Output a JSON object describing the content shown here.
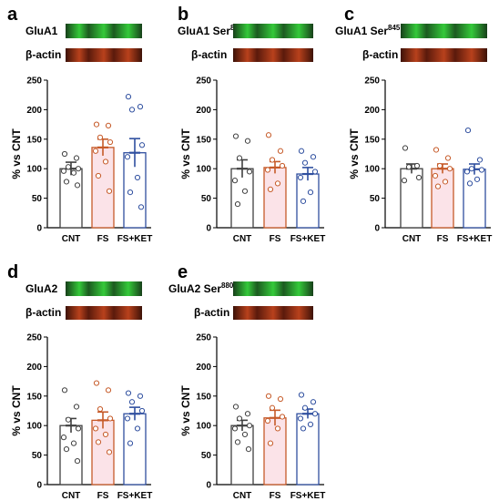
{
  "colors": {
    "CNT": "#404040",
    "FS": "#c65a28",
    "FS+KET": "#2f4f9f",
    "FS_fill": "#fbe3e8",
    "green_band": "#35c93a",
    "red_band": "#b8411c"
  },
  "chart_data": [
    {
      "type": "bar",
      "panel": "a",
      "blot_labels": {
        "target": "GluA1",
        "target_sup": "",
        "loading": "β-actin"
      },
      "categories": [
        "CNT",
        "FS",
        "FS+KET"
      ],
      "ylabel": "% vs CNT",
      "ylim": [
        0,
        250
      ],
      "yticks": [
        0,
        50,
        100,
        150,
        200,
        250
      ],
      "means": [
        100,
        136,
        127
      ],
      "sem": [
        11,
        14,
        24
      ],
      "points": [
        [
          125,
          118,
          103,
          100,
          96,
          93,
          78,
          72
        ],
        [
          175,
          173,
          153,
          145,
          130,
          112,
          88,
          62
        ],
        [
          222,
          205,
          200,
          140,
          120,
          85,
          60,
          35
        ]
      ]
    },
    {
      "type": "bar",
      "panel": "b",
      "blot_labels": {
        "target": "GluA1 Ser",
        "target_sup": "831",
        "loading": "β-actin"
      },
      "categories": [
        "CNT",
        "FS",
        "FS+KET"
      ],
      "ylabel": "% vs CNT",
      "ylim": [
        0,
        250
      ],
      "yticks": [
        0,
        50,
        100,
        150,
        200,
        250
      ],
      "means": [
        100,
        102,
        91
      ],
      "sem": [
        15,
        10,
        11
      ],
      "points": [
        [
          155,
          147,
          118,
          95,
          80,
          62,
          40
        ],
        [
          157,
          130,
          115,
          105,
          98,
          75,
          65
        ],
        [
          130,
          120,
          110,
          95,
          85,
          60,
          45
        ]
      ]
    },
    {
      "type": "bar",
      "panel": "c",
      "blot_labels": {
        "target": "GluA1 Ser",
        "target_sup": "845",
        "loading": "β-actin"
      },
      "categories": [
        "CNT",
        "FS",
        "FS+KET"
      ],
      "ylabel": "% vs CNT",
      "ylim": [
        0,
        250
      ],
      "yticks": [
        0,
        50,
        100,
        150,
        200,
        250
      ],
      "means": [
        100,
        100,
        99
      ],
      "sem": [
        8,
        8,
        9
      ],
      "points": [
        [
          135,
          105,
          103,
          85,
          80
        ],
        [
          132,
          118,
          105,
          100,
          88,
          78,
          70
        ],
        [
          165,
          115,
          100,
          98,
          95,
          82,
          75
        ]
      ]
    },
    {
      "type": "bar",
      "panel": "d",
      "blot_labels": {
        "target": "GluA2",
        "target_sup": "",
        "loading": "β-actin"
      },
      "categories": [
        "CNT",
        "FS",
        "FS+KET"
      ],
      "ylabel": "% vs CNT",
      "ylim": [
        0,
        250
      ],
      "yticks": [
        0,
        50,
        100,
        150,
        200,
        250
      ],
      "means": [
        100,
        109,
        120
      ],
      "sem": [
        12,
        14,
        11
      ],
      "points": [
        [
          160,
          132,
          110,
          95,
          80,
          70,
          60,
          40
        ],
        [
          172,
          160,
          128,
          112,
          95,
          85,
          72,
          55
        ],
        [
          155,
          150,
          140,
          125,
          112,
          95,
          70
        ]
      ]
    },
    {
      "type": "bar",
      "panel": "e",
      "blot_labels": {
        "target": "GluA2 Ser",
        "target_sup": "880",
        "loading": "β-actin"
      },
      "categories": [
        "CNT",
        "FS",
        "FS+KET"
      ],
      "ylabel": "% vs CNT",
      "ylim": [
        0,
        250
      ],
      "yticks": [
        0,
        50,
        100,
        150,
        200,
        250
      ],
      "means": [
        100,
        113,
        120
      ],
      "sem": [
        9,
        13,
        8
      ],
      "points": [
        [
          132,
          120,
          112,
          100,
          95,
          85,
          72,
          60
        ],
        [
          150,
          145,
          130,
          115,
          108,
          95,
          70
        ],
        [
          152,
          140,
          130,
          120,
          112,
          102,
          95
        ]
      ]
    }
  ]
}
